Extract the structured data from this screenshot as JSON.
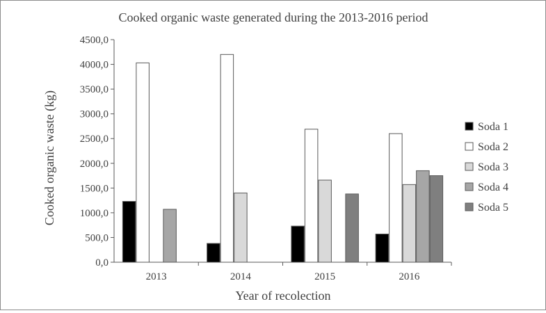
{
  "chart_data": {
    "type": "bar",
    "title": "Cooked organic waste generated during the 2013-2016 period",
    "xlabel": "Year of recolection",
    "ylabel": "Cooked organic waste (kg)",
    "categories": [
      "2013",
      "2014",
      "2015",
      "2016"
    ],
    "ylim": [
      0,
      4500
    ],
    "yticks": [
      0,
      500,
      1000,
      1500,
      2000,
      2500,
      3000,
      3500,
      4000,
      4500
    ],
    "ytick_labels": [
      "0,0",
      "500,0",
      "1000,0",
      "1500,0",
      "2000,0",
      "2500,0",
      "3000,0",
      "3500,0",
      "4000,0",
      "4500,0"
    ],
    "grid": false,
    "legend_position": "right",
    "series": [
      {
        "name": "Soda 1",
        "color": "#000000",
        "values": [
          1230,
          380,
          730,
          570
        ]
      },
      {
        "name": "Soda 2",
        "color": "#ffffff",
        "values": [
          4030,
          4200,
          2690,
          2600
        ]
      },
      {
        "name": "Soda 3",
        "color": "#d9d9d9",
        "values": [
          0,
          1400,
          1660,
          1570
        ]
      },
      {
        "name": "Soda 4",
        "color": "#a6a6a6",
        "values": [
          1070,
          0,
          0,
          1850
        ]
      },
      {
        "name": "Soda 5",
        "color": "#7f7f7f",
        "values": [
          0,
          0,
          1380,
          1750
        ]
      }
    ]
  }
}
